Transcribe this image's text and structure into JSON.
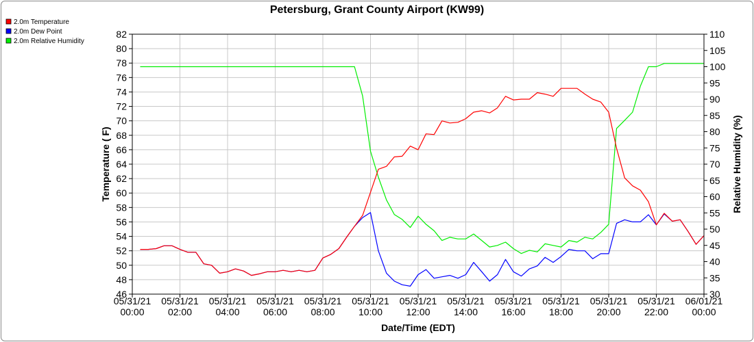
{
  "chart_data": {
    "type": "line",
    "title": "Petersburg, Grant County Airport (KW99)",
    "xlabel": "Date/Time (EDT)",
    "ylabel_left": "Temperature ( F)",
    "ylabel_right": "Relative Humidity (%)",
    "ylim_left": [
      46,
      82
    ],
    "yticks_left": [
      46,
      48,
      50,
      52,
      54,
      56,
      58,
      60,
      62,
      64,
      66,
      68,
      70,
      72,
      74,
      76,
      78,
      80,
      82
    ],
    "ylim_right": [
      30,
      110
    ],
    "yticks_right": [
      30,
      35,
      40,
      45,
      50,
      55,
      60,
      65,
      70,
      75,
      80,
      85,
      90,
      95,
      100,
      105,
      110
    ],
    "xlim_hours": [
      0,
      24
    ],
    "xtick_labels": [
      {
        "date": "05/31/21",
        "time": "00:00"
      },
      {
        "date": "05/31/21",
        "time": "02:00"
      },
      {
        "date": "05/31/21",
        "time": "04:00"
      },
      {
        "date": "05/31/21",
        "time": "06:00"
      },
      {
        "date": "05/31/21",
        "time": "08:00"
      },
      {
        "date": "05/31/21",
        "time": "10:00"
      },
      {
        "date": "05/31/21",
        "time": "12:00"
      },
      {
        "date": "05/31/21",
        "time": "14:00"
      },
      {
        "date": "05/31/21",
        "time": "16:00"
      },
      {
        "date": "05/31/21",
        "time": "18:00"
      },
      {
        "date": "05/31/21",
        "time": "20:00"
      },
      {
        "date": "05/31/21",
        "time": "22:00"
      },
      {
        "date": "06/01/21",
        "time": "00:00"
      }
    ],
    "grid": true,
    "legend_position": "top-left",
    "series": [
      {
        "name": "2.0m Temperature",
        "color": "#ff0000",
        "axis": "left",
        "x": [
          0.33,
          0.67,
          1.0,
          1.33,
          1.67,
          2.0,
          2.33,
          2.67,
          3.0,
          3.33,
          3.67,
          4.0,
          4.33,
          4.67,
          5.0,
          5.33,
          5.67,
          6.0,
          6.33,
          6.67,
          7.0,
          7.33,
          7.67,
          8.0,
          8.33,
          8.67,
          9.0,
          9.33,
          9.67,
          10.0,
          10.33,
          10.67,
          11.0,
          11.33,
          11.67,
          12.0,
          12.33,
          12.67,
          13.0,
          13.33,
          13.67,
          14.0,
          14.33,
          14.67,
          15.0,
          15.33,
          15.67,
          16.0,
          16.33,
          16.67,
          17.0,
          17.33,
          17.67,
          18.0,
          18.33,
          18.67,
          19.0,
          19.33,
          19.67,
          20.0,
          20.33,
          20.67,
          21.0,
          21.33,
          21.67,
          22.0,
          22.33,
          22.67,
          23.0,
          23.33,
          23.67,
          24.0
        ],
        "y": [
          52.2,
          52.2,
          52.3,
          52.7,
          52.7,
          52.2,
          51.8,
          51.8,
          50.2,
          50.0,
          48.9,
          49.1,
          49.5,
          49.2,
          48.6,
          48.8,
          49.1,
          49.1,
          49.3,
          49.1,
          49.3,
          49.1,
          49.3,
          51.0,
          51.5,
          52.3,
          53.9,
          55.4,
          56.9,
          60.1,
          63.3,
          63.7,
          65.0,
          65.1,
          66.5,
          66.0,
          68.2,
          68.1,
          70.0,
          69.7,
          69.8,
          70.3,
          71.2,
          71.4,
          71.1,
          71.8,
          73.4,
          72.9,
          73.0,
          73.0,
          73.9,
          73.7,
          73.4,
          74.5,
          74.5,
          74.5,
          73.7,
          73.0,
          72.6,
          71.2,
          66.2,
          62.1,
          61.0,
          60.4,
          58.8,
          55.6,
          57.2,
          56.1,
          56.3,
          54.7,
          52.9,
          54.1
        ]
      },
      {
        "name": "2.0m Dew Point",
        "color": "#0000ff",
        "axis": "left",
        "x": [
          0.33,
          0.67,
          1.0,
          1.33,
          1.67,
          2.0,
          2.33,
          2.67,
          3.0,
          3.33,
          3.67,
          4.0,
          4.33,
          4.67,
          5.0,
          5.33,
          5.67,
          6.0,
          6.33,
          6.67,
          7.0,
          7.33,
          7.67,
          8.0,
          8.33,
          8.67,
          9.0,
          9.33,
          9.67,
          10.0,
          10.33,
          10.67,
          11.0,
          11.33,
          11.67,
          12.0,
          12.33,
          12.67,
          13.0,
          13.33,
          13.67,
          14.0,
          14.33,
          14.67,
          15.0,
          15.33,
          15.67,
          16.0,
          16.33,
          16.67,
          17.0,
          17.33,
          17.67,
          18.0,
          18.33,
          18.67,
          19.0,
          19.33,
          19.67,
          20.0,
          20.33,
          20.67,
          21.0,
          21.33,
          21.67,
          22.0,
          22.33,
          22.67,
          23.0,
          23.33,
          23.67,
          24.0
        ],
        "y": [
          52.2,
          52.2,
          52.3,
          52.7,
          52.7,
          52.2,
          51.8,
          51.8,
          50.2,
          50.0,
          48.9,
          49.1,
          49.5,
          49.2,
          48.6,
          48.8,
          49.1,
          49.1,
          49.3,
          49.1,
          49.3,
          49.1,
          49.3,
          51.0,
          51.5,
          52.3,
          53.9,
          55.4,
          56.6,
          57.3,
          52.0,
          48.9,
          47.8,
          47.3,
          47.1,
          48.7,
          49.4,
          48.2,
          48.4,
          48.6,
          48.2,
          48.7,
          50.4,
          49.1,
          47.8,
          48.7,
          50.8,
          49.1,
          48.5,
          49.5,
          49.9,
          51.1,
          50.4,
          51.2,
          52.2,
          52.0,
          52.0,
          50.9,
          51.6,
          51.6,
          55.8,
          56.3,
          56.0,
          56.0,
          57.0,
          55.6,
          57.1,
          56.1,
          56.3,
          54.7,
          52.9,
          54.1
        ]
      },
      {
        "name": "2.0m Relative Humidity",
        "color": "#00ee00",
        "axis": "right",
        "x": [
          0.33,
          9.33,
          9.67,
          10.0,
          10.33,
          10.67,
          11.0,
          11.33,
          11.67,
          12.0,
          12.33,
          12.67,
          13.0,
          13.33,
          13.67,
          14.0,
          14.33,
          14.67,
          15.0,
          15.33,
          15.67,
          16.0,
          16.33,
          16.67,
          17.0,
          17.33,
          17.67,
          18.0,
          18.33,
          18.67,
          19.0,
          19.33,
          19.67,
          20.0,
          20.33,
          20.67,
          21.0,
          21.33,
          21.67,
          22.0,
          22.33,
          22.67,
          23.0,
          23.33,
          23.67,
          24.0
        ],
        "y": [
          100,
          100,
          91,
          74,
          66,
          59,
          54.5,
          53,
          50.5,
          54,
          51.5,
          49.5,
          46.5,
          47.5,
          47,
          47,
          48.5,
          46.5,
          44.5,
          45,
          46,
          44,
          42.5,
          43.5,
          43,
          45.5,
          45,
          44.5,
          46.5,
          46,
          47.5,
          47,
          49,
          51.5,
          81,
          83.5,
          86,
          94,
          100,
          100,
          101,
          101,
          101,
          101,
          101,
          101
        ]
      }
    ]
  }
}
